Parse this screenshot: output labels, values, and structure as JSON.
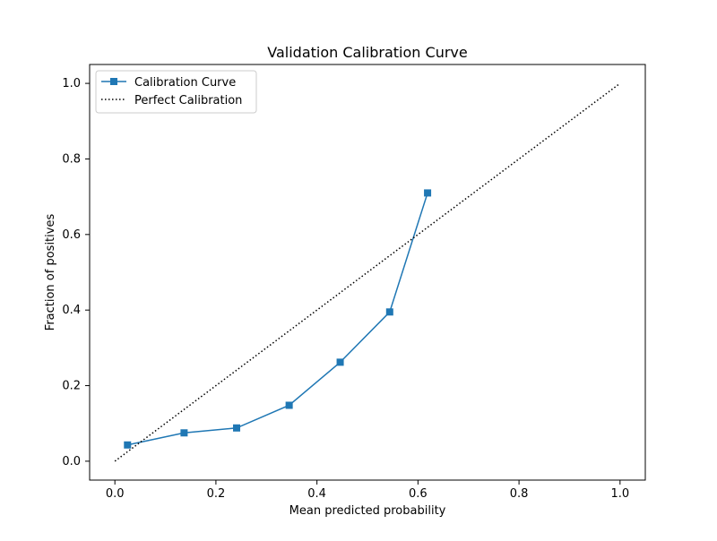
{
  "chart_data": {
    "type": "line",
    "title": "Validation Calibration Curve",
    "xlabel": "Mean predicted probability",
    "ylabel": "Fraction of positives",
    "xlim": [
      -0.05,
      1.05
    ],
    "ylim": [
      -0.05,
      1.05
    ],
    "xticks": [
      0.0,
      0.2,
      0.4,
      0.6,
      0.8,
      1.0
    ],
    "yticks": [
      0.0,
      0.2,
      0.4,
      0.6,
      0.8,
      1.0
    ],
    "xtick_labels": [
      "0.0",
      "0.2",
      "0.4",
      "0.6",
      "0.8",
      "1.0"
    ],
    "ytick_labels": [
      "0.0",
      "0.2",
      "0.4",
      "0.6",
      "0.8",
      "1.0"
    ],
    "grid": false,
    "legend_position": "top-left",
    "series": [
      {
        "name": "Calibration Curve",
        "style": "solid",
        "marker": "square",
        "color": "#1f77b4",
        "x": [
          0.025,
          0.137,
          0.241,
          0.345,
          0.446,
          0.544,
          0.619
        ],
        "y": [
          0.043,
          0.075,
          0.088,
          0.148,
          0.262,
          0.395,
          0.71
        ]
      },
      {
        "name": "Perfect Calibration",
        "style": "dotted",
        "marker": "none",
        "color": "#000000",
        "x": [
          0.0,
          1.0
        ],
        "y": [
          0.0,
          1.0
        ]
      }
    ]
  }
}
